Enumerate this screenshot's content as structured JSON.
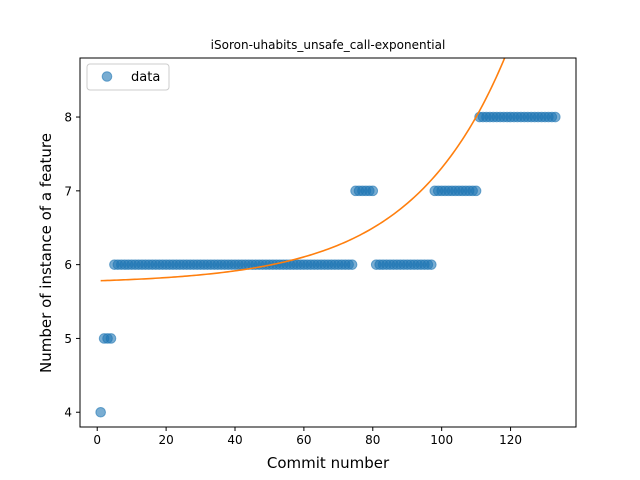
{
  "chart_data": {
    "type": "scatter",
    "title": "iSoron-uhabits_unsafe_call-exponential",
    "xlabel": "Commit number",
    "ylabel": "Number of instance of a feature",
    "xlim": [
      -5,
      139
    ],
    "ylim": [
      3.8,
      8.8
    ],
    "xticks": [
      0,
      20,
      40,
      60,
      80,
      100,
      120
    ],
    "yticks": [
      4,
      5,
      6,
      7,
      8
    ],
    "legend": {
      "placement": "top-left",
      "entries": [
        "data"
      ]
    },
    "colors": {
      "data": "#1f77b4",
      "fit": "#ff7f0e"
    },
    "series": [
      {
        "name": "data",
        "kind": "scatter",
        "segments": [
          {
            "x_start": 1,
            "x_end": 1,
            "y": 4
          },
          {
            "x_start": 2,
            "x_end": 4,
            "y": 5
          },
          {
            "x_start": 5,
            "x_end": 74,
            "y": 6
          },
          {
            "x_start": 75,
            "x_end": 80,
            "y": 7
          },
          {
            "x_start": 81,
            "x_end": 97,
            "y": 6
          },
          {
            "x_start": 98,
            "x_end": 110,
            "y": 7
          },
          {
            "x_start": 111,
            "x_end": 133,
            "y": 8
          }
        ]
      },
      {
        "kind": "line",
        "x_range": [
          1,
          133
        ],
        "model": {
          "a": 0.0408,
          "b": 0.0365,
          "c": 5.74
        }
      }
    ]
  }
}
